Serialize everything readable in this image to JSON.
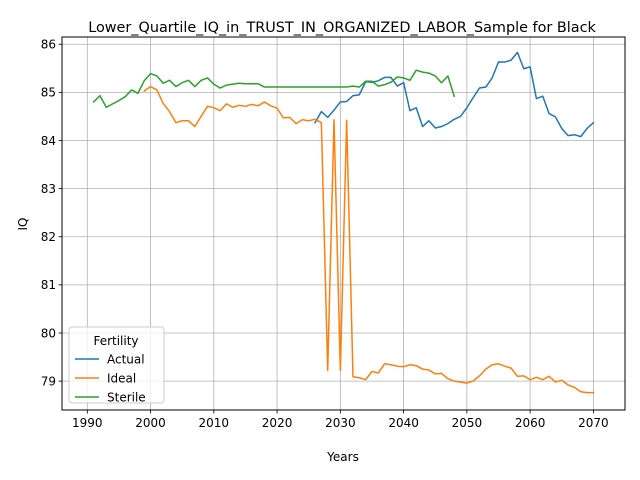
{
  "chart_data": {
    "type": "line",
    "title": "Lower_Quartile_IQ_in_TRUST_IN_ORGANIZED_LABOR_Sample for Black",
    "xlabel": "Years",
    "ylabel": "IQ",
    "xlim": [
      1986,
      2075
    ],
    "ylim": [
      78.4,
      86.15
    ],
    "xticks": [
      1990,
      2000,
      2010,
      2020,
      2030,
      2040,
      2050,
      2060,
      2070
    ],
    "yticks": [
      79,
      80,
      81,
      82,
      83,
      84,
      85,
      86
    ],
    "grid": true,
    "legend": {
      "title": "Fertility",
      "placement": "lower-left"
    },
    "series": [
      {
        "name": "Actual",
        "color": "#1f77b4",
        "x": [
          2026,
          2027,
          2028,
          2029,
          2030,
          2031,
          2032,
          2033,
          2034,
          2035,
          2036,
          2037,
          2038,
          2039,
          2040,
          2041,
          2042,
          2043,
          2044,
          2045,
          2046,
          2047,
          2048,
          2049,
          2050,
          2051,
          2052,
          2053,
          2054,
          2055,
          2056,
          2057,
          2058,
          2059,
          2060,
          2061,
          2062,
          2063,
          2064,
          2065,
          2066,
          2067,
          2068,
          2069,
          2070
        ],
        "y": [
          84.37,
          84.6,
          84.48,
          84.63,
          84.8,
          84.81,
          84.93,
          84.95,
          85.22,
          85.21,
          85.24,
          85.31,
          85.31,
          85.13,
          85.2,
          84.62,
          84.68,
          84.29,
          84.41,
          84.26,
          84.29,
          84.35,
          84.44,
          84.5,
          84.68,
          84.89,
          85.09,
          85.11,
          85.3,
          85.63,
          85.63,
          85.67,
          85.83,
          85.49,
          85.53,
          84.87,
          84.92,
          84.56,
          84.49,
          84.25,
          84.1,
          84.12,
          84.08,
          84.25,
          84.37
        ]
      },
      {
        "name": "Ideal",
        "color": "#ff7f0e",
        "x": [
          1999,
          2000,
          2001,
          2002,
          2003,
          2004,
          2005,
          2006,
          2007,
          2008,
          2009,
          2010,
          2011,
          2012,
          2013,
          2014,
          2015,
          2016,
          2017,
          2018,
          2019,
          2020,
          2021,
          2022,
          2023,
          2024,
          2025,
          2026,
          2027,
          2028,
          2029,
          2030,
          2031,
          2032,
          2033,
          2034,
          2035,
          2036,
          2037,
          2038,
          2039,
          2040,
          2041,
          2042,
          2043,
          2044,
          2045,
          2046,
          2047,
          2048,
          2049,
          2050,
          2051,
          2052,
          2053,
          2054,
          2055,
          2056,
          2057,
          2058,
          2059,
          2060,
          2061,
          2062,
          2063,
          2064,
          2065,
          2066,
          2067,
          2068,
          2069,
          2070
        ],
        "y": [
          85.03,
          85.12,
          85.05,
          84.77,
          84.6,
          84.37,
          84.41,
          84.41,
          84.29,
          84.5,
          84.71,
          84.68,
          84.62,
          84.76,
          84.69,
          84.73,
          84.71,
          84.75,
          84.72,
          84.8,
          84.72,
          84.67,
          84.47,
          84.48,
          84.35,
          84.43,
          84.41,
          84.44,
          84.37,
          79.22,
          84.43,
          79.22,
          84.42,
          79.09,
          79.07,
          79.03,
          79.2,
          79.17,
          79.36,
          79.34,
          79.31,
          79.3,
          79.34,
          79.32,
          79.25,
          79.23,
          79.15,
          79.16,
          79.05,
          79.0,
          78.98,
          78.96,
          79.0,
          79.11,
          79.25,
          79.34,
          79.36,
          79.31,
          79.27,
          79.1,
          79.11,
          79.03,
          79.08,
          79.03,
          79.1,
          78.98,
          79.02,
          78.92,
          78.87,
          78.78,
          78.76,
          78.76
        ]
      },
      {
        "name": "Sterile",
        "color": "#2ca02c",
        "x": [
          1991,
          1992,
          1993,
          1994,
          1995,
          1996,
          1997,
          1998,
          1999,
          2000,
          2001,
          2002,
          2003,
          2004,
          2005,
          2006,
          2007,
          2008,
          2009,
          2010,
          2011,
          2012,
          2013,
          2014,
          2015,
          2016,
          2017,
          2018,
          2019,
          2020,
          2021,
          2022,
          2023,
          2024,
          2025,
          2026,
          2027,
          2028,
          2029,
          2030,
          2031,
          2032,
          2033,
          2034,
          2035,
          2036,
          2037,
          2038,
          2039,
          2040,
          2041,
          2042,
          2043,
          2044,
          2045,
          2046,
          2047,
          2048
        ],
        "y": [
          84.8,
          84.93,
          84.69,
          84.76,
          84.83,
          84.91,
          85.05,
          84.98,
          85.24,
          85.39,
          85.34,
          85.19,
          85.25,
          85.12,
          85.2,
          85.25,
          85.12,
          85.25,
          85.3,
          85.17,
          85.09,
          85.15,
          85.17,
          85.19,
          85.18,
          85.18,
          85.18,
          85.11,
          85.11,
          85.11,
          85.11,
          85.11,
          85.11,
          85.11,
          85.11,
          85.11,
          85.11,
          85.11,
          85.11,
          85.11,
          85.11,
          85.13,
          85.11,
          85.23,
          85.23,
          85.13,
          85.16,
          85.21,
          85.32,
          85.3,
          85.25,
          85.46,
          85.42,
          85.4,
          85.34,
          85.2,
          85.34,
          84.92
        ]
      }
    ]
  }
}
